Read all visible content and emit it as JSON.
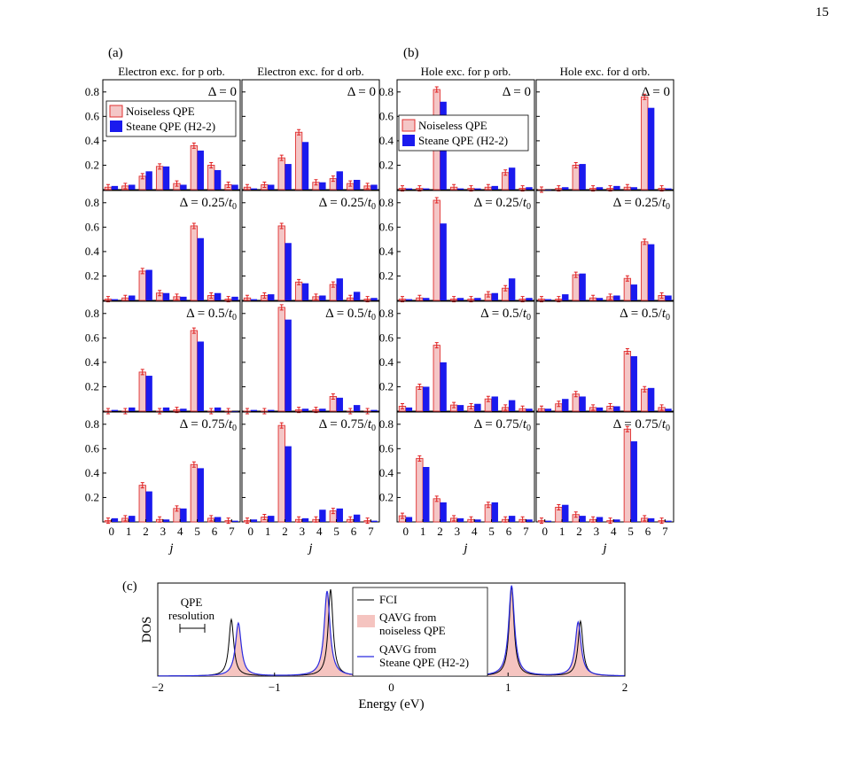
{
  "page_number": "15",
  "colors": {
    "noiseless_fill": "#f4c6c6",
    "noiseless_edge": "#e03030",
    "steane_fill": "#1a1aee",
    "errorbar": "#e02020",
    "fci_line": "#000000",
    "qavg_steane_line": "#2a2adf",
    "qavg_noiseless_fill": "#f5c4c0"
  },
  "panel_labels": {
    "a": "(a)",
    "b": "(b)",
    "c": "(c)"
  },
  "bar_panels": {
    "column_titles": [
      "Electron exc. for p orb.",
      "Electron exc. for d orb.",
      "Hole exc. for p orb.",
      "Hole exc. for d orb."
    ],
    "row_labels": [
      "Δ = 0",
      "Δ = 0.25/t₀",
      "Δ = 0.5/t₀",
      "Δ = 0.75/t₀"
    ],
    "legend": [
      "Noiseless QPE",
      "Steane QPE (H2-2)"
    ],
    "xlabel": "j",
    "xticks": [
      "0",
      "1",
      "2",
      "3",
      "4",
      "5",
      "6",
      "7"
    ],
    "yticks": [
      "0.2",
      "0.4",
      "0.6",
      "0.8"
    ]
  },
  "chart_data": [
    {
      "type": "bar",
      "title": "Electron exc. for p orb.",
      "xlabel": "j",
      "categories": [
        "0",
        "1",
        "2",
        "3",
        "4",
        "5",
        "6",
        "7"
      ],
      "ylim": [
        0,
        0.9
      ],
      "rows": [
        {
          "label": "Δ = 0",
          "series": [
            {
              "name": "Noiseless QPE",
              "values": [
                0.02,
                0.03,
                0.11,
                0.19,
                0.05,
                0.36,
                0.2,
                0.04
              ]
            },
            {
              "name": "Steane QPE (H2-2)",
              "values": [
                0.03,
                0.04,
                0.15,
                0.19,
                0.04,
                0.32,
                0.16,
                0.04
              ]
            }
          ]
        },
        {
          "label": "Δ = 0.25/t₀",
          "series": [
            {
              "name": "Noiseless QPE",
              "values": [
                0.01,
                0.02,
                0.24,
                0.06,
                0.03,
                0.61,
                0.04,
                0.01
              ]
            },
            {
              "name": "Steane QPE (H2-2)",
              "values": [
                0.01,
                0.04,
                0.25,
                0.06,
                0.03,
                0.51,
                0.06,
                0.03
              ]
            }
          ]
        },
        {
          "label": "Δ = 0.5/t₀",
          "series": [
            {
              "name": "Noiseless QPE",
              "values": [
                0.0,
                0.0,
                0.32,
                0.0,
                0.01,
                0.66,
                0.0,
                0.0
              ]
            },
            {
              "name": "Steane QPE (H2-2)",
              "values": [
                0.01,
                0.03,
                0.29,
                0.03,
                0.02,
                0.57,
                0.03,
                0.0
              ]
            }
          ]
        },
        {
          "label": "Δ = 0.75/t₀",
          "series": [
            {
              "name": "Noiseless QPE",
              "values": [
                0.01,
                0.03,
                0.3,
                0.02,
                0.11,
                0.47,
                0.03,
                0.01
              ]
            },
            {
              "name": "Steane QPE (H2-2)",
              "values": [
                0.03,
                0.05,
                0.25,
                0.02,
                0.11,
                0.44,
                0.04,
                0.01
              ]
            }
          ]
        }
      ]
    },
    {
      "type": "bar",
      "title": "Electron exc. for d orb.",
      "xlabel": "j",
      "categories": [
        "0",
        "1",
        "2",
        "3",
        "4",
        "5",
        "6",
        "7"
      ],
      "ylim": [
        0,
        0.9
      ],
      "rows": [
        {
          "label": "Δ = 0",
          "series": [
            {
              "name": "Noiseless QPE",
              "values": [
                0.02,
                0.04,
                0.26,
                0.47,
                0.06,
                0.09,
                0.05,
                0.03
              ]
            },
            {
              "name": "Steane QPE (H2-2)",
              "values": [
                0.01,
                0.04,
                0.21,
                0.39,
                0.06,
                0.15,
                0.08,
                0.04
              ]
            }
          ]
        },
        {
          "label": "Δ = 0.25/t₀",
          "series": [
            {
              "name": "Noiseless QPE",
              "values": [
                0.02,
                0.04,
                0.61,
                0.15,
                0.03,
                0.13,
                0.02,
                0.01
              ]
            },
            {
              "name": "Steane QPE (H2-2)",
              "values": [
                0.01,
                0.05,
                0.47,
                0.14,
                0.04,
                0.18,
                0.07,
                0.02
              ]
            }
          ]
        },
        {
          "label": "Δ = 0.5/t₀",
          "series": [
            {
              "name": "Noiseless QPE",
              "values": [
                0.0,
                0.0,
                0.85,
                0.01,
                0.01,
                0.12,
                0.0,
                0.0
              ]
            },
            {
              "name": "Steane QPE (H2-2)",
              "values": [
                0.01,
                0.01,
                0.75,
                0.02,
                0.02,
                0.11,
                0.05,
                0.01
              ]
            }
          ]
        },
        {
          "label": "Δ = 0.75/t₀",
          "series": [
            {
              "name": "Noiseless QPE",
              "values": [
                0.01,
                0.04,
                0.79,
                0.02,
                0.02,
                0.09,
                0.02,
                0.01
              ]
            },
            {
              "name": "Steane QPE (H2-2)",
              "values": [
                0.02,
                0.05,
                0.62,
                0.03,
                0.1,
                0.11,
                0.06,
                0.01
              ]
            }
          ]
        }
      ]
    },
    {
      "type": "bar",
      "title": "Hole exc. for p orb.",
      "xlabel": "j",
      "categories": [
        "0",
        "1",
        "2",
        "3",
        "4",
        "5",
        "6",
        "7"
      ],
      "ylim": [
        0,
        0.9
      ],
      "rows": [
        {
          "label": "Δ = 0",
          "series": [
            {
              "name": "Noiseless QPE",
              "values": [
                0.01,
                0.01,
                0.82,
                0.02,
                0.01,
                0.02,
                0.14,
                0.01
              ]
            },
            {
              "name": "Steane QPE (H2-2)",
              "values": [
                0.01,
                0.01,
                0.72,
                0.01,
                0.01,
                0.03,
                0.18,
                0.02
              ]
            }
          ]
        },
        {
          "label": "Δ = 0.25/t₀",
          "series": [
            {
              "name": "Noiseless QPE",
              "values": [
                0.01,
                0.02,
                0.82,
                0.01,
                0.01,
                0.05,
                0.1,
                0.01
              ]
            },
            {
              "name": "Steane QPE (H2-2)",
              "values": [
                0.01,
                0.02,
                0.63,
                0.02,
                0.02,
                0.06,
                0.18,
                0.02
              ]
            }
          ]
        },
        {
          "label": "Δ = 0.5/t₀",
          "series": [
            {
              "name": "Noiseless QPE",
              "values": [
                0.04,
                0.2,
                0.54,
                0.05,
                0.04,
                0.1,
                0.03,
                0.02
              ]
            },
            {
              "name": "Steane QPE (H2-2)",
              "values": [
                0.03,
                0.2,
                0.4,
                0.05,
                0.06,
                0.12,
                0.09,
                0.02
              ]
            }
          ]
        },
        {
          "label": "Δ = 0.75/t₀",
          "series": [
            {
              "name": "Noiseless QPE",
              "values": [
                0.05,
                0.52,
                0.19,
                0.03,
                0.02,
                0.14,
                0.02,
                0.02
              ]
            },
            {
              "name": "Steane QPE (H2-2)",
              "values": [
                0.04,
                0.45,
                0.16,
                0.03,
                0.02,
                0.16,
                0.05,
                0.02
              ]
            }
          ]
        }
      ]
    },
    {
      "type": "bar",
      "title": "Hole exc. for d orb.",
      "xlabel": "j",
      "categories": [
        "0",
        "1",
        "2",
        "3",
        "4",
        "5",
        "6",
        "7"
      ],
      "ylim": [
        0,
        0.9
      ],
      "rows": [
        {
          "label": "Δ = 0",
          "series": [
            {
              "name": "Noiseless QPE",
              "values": [
                0.0,
                0.01,
                0.2,
                0.01,
                0.01,
                0.02,
                0.76,
                0.01
              ]
            },
            {
              "name": "Steane QPE (H2-2)",
              "values": [
                0.0,
                0.02,
                0.21,
                0.02,
                0.03,
                0.02,
                0.67,
                0.01
              ]
            }
          ]
        },
        {
          "label": "Δ = 0.25/t₀",
          "series": [
            {
              "name": "Noiseless QPE",
              "values": [
                0.01,
                0.01,
                0.21,
                0.02,
                0.03,
                0.18,
                0.48,
                0.04
              ]
            },
            {
              "name": "Steane QPE (H2-2)",
              "values": [
                0.01,
                0.05,
                0.22,
                0.02,
                0.04,
                0.13,
                0.46,
                0.04
              ]
            }
          ]
        },
        {
          "label": "Δ = 0.5/t₀",
          "series": [
            {
              "name": "Noiseless QPE",
              "values": [
                0.02,
                0.06,
                0.14,
                0.03,
                0.04,
                0.49,
                0.18,
                0.03
              ]
            },
            {
              "name": "Steane QPE (H2-2)",
              "values": [
                0.02,
                0.1,
                0.12,
                0.03,
                0.04,
                0.45,
                0.19,
                0.02
              ]
            }
          ]
        },
        {
          "label": "Δ = 0.75/t₀",
          "series": [
            {
              "name": "Noiseless QPE",
              "values": [
                0.01,
                0.12,
                0.06,
                0.02,
                0.01,
                0.76,
                0.03,
                0.01
              ]
            },
            {
              "name": "Steane QPE (H2-2)",
              "values": [
                0.01,
                0.14,
                0.05,
                0.04,
                0.02,
                0.66,
                0.03,
                0.01
              ]
            }
          ]
        }
      ]
    },
    {
      "type": "line",
      "title": "",
      "xlabel": "Energy (eV)",
      "ylabel": "DOS",
      "xlim": [
        -2,
        2
      ],
      "xticks": [
        "−2",
        "−1",
        "0",
        "1",
        "2"
      ],
      "annotation": "QPE resolution",
      "legend": [
        "FCI",
        "QAVG from noiseless QPE",
        "QAVG from Steane QPE (H2-2)"
      ],
      "series": [
        {
          "name": "FCI",
          "peaks": [
            {
              "x": -1.37,
              "height": 0.62
            },
            {
              "x": -0.52,
              "height": 0.95
            },
            {
              "x": 1.03,
              "height": 0.98
            },
            {
              "x": 1.62,
              "height": 0.6
            }
          ]
        },
        {
          "name": "QAVG from noiseless QPE",
          "peaks": [
            {
              "x": -1.31,
              "height": 0.55
            },
            {
              "x": -0.55,
              "height": 0.9
            },
            {
              "x": 1.03,
              "height": 0.99
            },
            {
              "x": 1.6,
              "height": 0.58
            }
          ]
        },
        {
          "name": "QAVG from Steane QPE (H2-2)",
          "peaks": [
            {
              "x": -1.31,
              "height": 0.58
            },
            {
              "x": -0.55,
              "height": 0.93
            },
            {
              "x": 1.03,
              "height": 0.99
            },
            {
              "x": 1.6,
              "height": 0.59
            }
          ]
        }
      ]
    }
  ]
}
